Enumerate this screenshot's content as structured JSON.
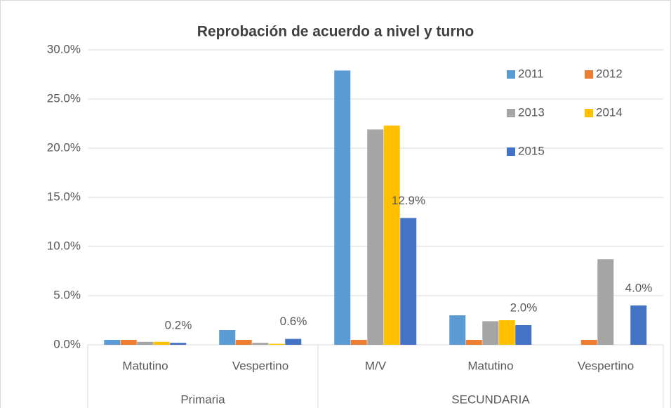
{
  "chart_data": {
    "type": "bar",
    "title": "Reprobación de acuerdo a nivel y turno",
    "categories": [
      "Matutino",
      "Vespertino",
      "M/V",
      "Matutino",
      "Vespertino"
    ],
    "groups": [
      {
        "label": "Primaria",
        "span": 2
      },
      {
        "label": "SECUNDARIA",
        "span": 3
      }
    ],
    "series": [
      {
        "name": "2011",
        "color": "#5b9bd5",
        "values": [
          0.5,
          1.5,
          27.9,
          3.0,
          null
        ]
      },
      {
        "name": "2012",
        "color": "#ed7d31",
        "values": [
          0.5,
          0.5,
          0.5,
          0.5,
          0.5
        ]
      },
      {
        "name": "2013",
        "color": "#a5a5a5",
        "values": [
          0.3,
          0.2,
          21.9,
          2.4,
          8.7
        ]
      },
      {
        "name": "2014",
        "color": "#ffc000",
        "values": [
          0.3,
          0.1,
          22.3,
          2.5,
          null
        ]
      },
      {
        "name": "2015",
        "color": "#4472c4",
        "values": [
          0.2,
          0.6,
          12.9,
          2.0,
          4.0
        ],
        "value_labels": [
          "0.2%",
          "0.6%",
          "12.9%",
          "2.0%",
          "4.0%"
        ]
      }
    ],
    "ylim": [
      0,
      30
    ],
    "yticks": [
      {
        "value": 0,
        "label": "0.0%"
      },
      {
        "value": 5,
        "label": "5.0%"
      },
      {
        "value": 10,
        "label": "10.0%"
      },
      {
        "value": 15,
        "label": "15.0%"
      },
      {
        "value": 20,
        "label": "20.0%"
      },
      {
        "value": 25,
        "label": "25.0%"
      },
      {
        "value": 30,
        "label": "30.0%"
      }
    ],
    "grid": true,
    "legend": "top-right"
  }
}
